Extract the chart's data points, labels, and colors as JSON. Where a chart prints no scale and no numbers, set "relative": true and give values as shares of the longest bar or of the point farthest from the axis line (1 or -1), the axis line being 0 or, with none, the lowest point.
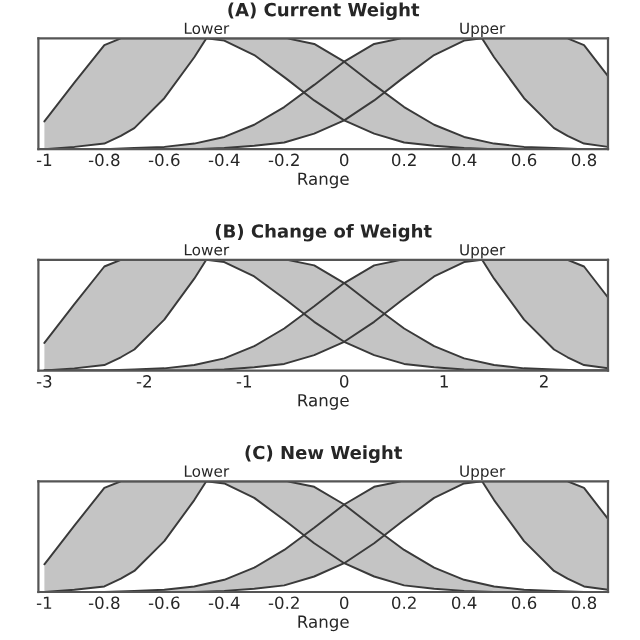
{
  "chart_data": [
    {
      "type": "line",
      "title": "(A) Current Weight",
      "xlabel": "Range",
      "relative": true,
      "tick_labels": "x",
      "xlim": [
        -1.02,
        0.88
      ],
      "xticks": [
        -1,
        -0.8,
        -0.6,
        -0.4,
        -0.2,
        0,
        0.2,
        0.4,
        0.6,
        0.8
      ],
      "annotations": [
        {
          "text": "Lower",
          "x": -0.46,
          "y": 1
        },
        {
          "text": "Upper",
          "x": 0.46,
          "y": 1
        }
      ],
      "series": [
        {
          "color": "#3a3a3a",
          "x": [
            -1,
            -0.9,
            -0.8,
            -0.745,
            -0.7,
            -0.6,
            -0.5,
            -0.46,
            -0.4,
            -0.3,
            -0.2,
            -0.19,
            -0.1,
            0,
            0.1,
            0.2,
            0.3,
            0.4,
            0.5,
            0.6,
            0.7,
            0.8,
            0.88
          ],
          "values": [
            0.25,
            0.6,
            0.94,
            1,
            1,
            1,
            1,
            1,
            1,
            1,
            1,
            1,
            0.95,
            0.79,
            0.58,
            0.38,
            0.22,
            0.11,
            0.05,
            0.02,
            0.01,
            0,
            0
          ]
        },
        {
          "color": "#3a3a3a",
          "x": [
            -1,
            -0.9,
            -0.8,
            -0.745,
            -0.7,
            -0.6,
            -0.5,
            -0.46,
            -0.4,
            -0.3,
            -0.2,
            -0.19,
            -0.1,
            0,
            0.1,
            0.2,
            0.3,
            0.4,
            0.5,
            0.6,
            0.7,
            0.8,
            0.88
          ],
          "values": [
            0,
            0.02,
            0.05,
            0.12,
            0.19,
            0.46,
            0.83,
            1,
            0.98,
            0.85,
            0.65,
            0.63,
            0.44,
            0.26,
            0.14,
            0.06,
            0.03,
            0.01,
            0,
            0,
            0,
            0,
            0
          ]
        },
        {
          "color": "#3a3a3a",
          "x": [
            -1,
            -0.9,
            -0.8,
            -0.7,
            -0.6,
            -0.5,
            -0.4,
            -0.3,
            -0.2,
            -0.1,
            0,
            0.1,
            0.19,
            0.2,
            0.3,
            0.4,
            0.46,
            0.5,
            0.6,
            0.7,
            0.745,
            0.8,
            0.88
          ],
          "values": [
            0,
            0,
            0,
            0.01,
            0.02,
            0.05,
            0.11,
            0.22,
            0.38,
            0.58,
            0.79,
            0.95,
            1,
            1,
            1,
            1,
            1,
            1,
            1,
            1,
            1,
            0.94,
            0.66
          ]
        },
        {
          "color": "#3a3a3a",
          "x": [
            -1,
            -0.9,
            -0.8,
            -0.7,
            -0.6,
            -0.5,
            -0.4,
            -0.3,
            -0.2,
            -0.1,
            0,
            0.1,
            0.19,
            0.2,
            0.3,
            0.4,
            0.46,
            0.5,
            0.6,
            0.7,
            0.745,
            0.8,
            0.88
          ],
          "values": [
            0,
            0,
            0,
            0,
            0,
            0,
            0.01,
            0.03,
            0.06,
            0.14,
            0.26,
            0.44,
            0.63,
            0.65,
            0.85,
            0.98,
            1,
            0.83,
            0.46,
            0.19,
            0.12,
            0.05,
            0.02
          ]
        }
      ]
    },
    {
      "type": "line",
      "title": "(B) Change of Weight",
      "xlabel": "Range",
      "relative": true,
      "tick_labels": "x",
      "xlim": [
        -3.06,
        2.64
      ],
      "xticks": [
        -3,
        -2,
        -1,
        0,
        1,
        2
      ],
      "annotations": [
        {
          "text": "Lower",
          "x": -1.38,
          "y": 1
        },
        {
          "text": "Upper",
          "x": 1.38,
          "y": 1
        }
      ],
      "series": [
        {
          "color": "#3a3a3a",
          "x": [
            -3,
            -2.7,
            -2.4,
            -2.235,
            -2.1,
            -1.8,
            -1.5,
            -1.38,
            -1.2,
            -0.9,
            -0.6,
            -0.57,
            -0.3,
            0,
            0.3,
            0.6,
            0.9,
            1.2,
            1.5,
            1.8,
            2.1,
            2.4,
            2.64
          ],
          "values": [
            0.25,
            0.6,
            0.94,
            1,
            1,
            1,
            1,
            1,
            1,
            1,
            1,
            1,
            0.95,
            0.79,
            0.58,
            0.38,
            0.22,
            0.11,
            0.05,
            0.02,
            0.01,
            0,
            0
          ]
        },
        {
          "color": "#3a3a3a",
          "x": [
            -3,
            -2.7,
            -2.4,
            -2.235,
            -2.1,
            -1.8,
            -1.5,
            -1.38,
            -1.2,
            -0.9,
            -0.6,
            -0.57,
            -0.3,
            0,
            0.3,
            0.6,
            0.9,
            1.2,
            1.5,
            1.8,
            2.1,
            2.4,
            2.64
          ],
          "values": [
            0,
            0.02,
            0.05,
            0.12,
            0.19,
            0.46,
            0.83,
            1,
            0.98,
            0.85,
            0.65,
            0.63,
            0.44,
            0.26,
            0.14,
            0.06,
            0.03,
            0.01,
            0,
            0,
            0,
            0,
            0
          ]
        },
        {
          "color": "#3a3a3a",
          "x": [
            -3,
            -2.7,
            -2.4,
            -2.1,
            -1.8,
            -1.5,
            -1.2,
            -0.9,
            -0.6,
            -0.3,
            0,
            0.3,
            0.57,
            0.6,
            0.9,
            1.2,
            1.38,
            1.5,
            1.8,
            2.1,
            2.235,
            2.4,
            2.64
          ],
          "values": [
            0,
            0,
            0,
            0.01,
            0.02,
            0.05,
            0.11,
            0.22,
            0.38,
            0.58,
            0.79,
            0.95,
            1,
            1,
            1,
            1,
            1,
            1,
            1,
            1,
            1,
            0.94,
            0.66
          ]
        },
        {
          "color": "#3a3a3a",
          "x": [
            -3,
            -2.7,
            -2.4,
            -2.1,
            -1.8,
            -1.5,
            -1.2,
            -0.9,
            -0.6,
            -0.3,
            0,
            0.3,
            0.57,
            0.6,
            0.9,
            1.2,
            1.38,
            1.5,
            1.8,
            2.1,
            2.235,
            2.4,
            2.64
          ],
          "values": [
            0,
            0,
            0,
            0,
            0,
            0,
            0.01,
            0.03,
            0.06,
            0.14,
            0.26,
            0.44,
            0.63,
            0.65,
            0.85,
            0.98,
            1,
            0.83,
            0.46,
            0.19,
            0.12,
            0.05,
            0.02
          ]
        }
      ]
    },
    {
      "type": "line",
      "title": "(C) New Weight",
      "xlabel": "Range",
      "relative": true,
      "tick_labels": "x",
      "xlim": [
        -1.02,
        0.88
      ],
      "xticks": [
        -1,
        -0.8,
        -0.6,
        -0.4,
        -0.2,
        0,
        0.2,
        0.4,
        0.6,
        0.8
      ],
      "annotations": [
        {
          "text": "Lower",
          "x": -0.46,
          "y": 1
        },
        {
          "text": "Upper",
          "x": 0.46,
          "y": 1
        }
      ],
      "series": [
        {
          "color": "#3a3a3a",
          "x": [
            -1,
            -0.9,
            -0.8,
            -0.745,
            -0.7,
            -0.6,
            -0.5,
            -0.46,
            -0.4,
            -0.3,
            -0.2,
            -0.19,
            -0.1,
            0,
            0.1,
            0.2,
            0.3,
            0.4,
            0.5,
            0.6,
            0.7,
            0.8,
            0.88
          ],
          "values": [
            0.25,
            0.6,
            0.94,
            1,
            1,
            1,
            1,
            1,
            1,
            1,
            1,
            1,
            0.95,
            0.79,
            0.58,
            0.38,
            0.22,
            0.11,
            0.05,
            0.02,
            0.01,
            0,
            0
          ]
        },
        {
          "color": "#3a3a3a",
          "x": [
            -1,
            -0.9,
            -0.8,
            -0.745,
            -0.7,
            -0.6,
            -0.5,
            -0.46,
            -0.4,
            -0.3,
            -0.2,
            -0.19,
            -0.1,
            0,
            0.1,
            0.2,
            0.3,
            0.4,
            0.5,
            0.6,
            0.7,
            0.8,
            0.88
          ],
          "values": [
            0,
            0.02,
            0.05,
            0.12,
            0.19,
            0.46,
            0.83,
            1,
            0.98,
            0.85,
            0.65,
            0.63,
            0.44,
            0.26,
            0.14,
            0.06,
            0.03,
            0.01,
            0,
            0,
            0,
            0,
            0
          ]
        },
        {
          "color": "#3a3a3a",
          "x": [
            -1,
            -0.9,
            -0.8,
            -0.7,
            -0.6,
            -0.5,
            -0.4,
            -0.3,
            -0.2,
            -0.1,
            0,
            0.1,
            0.19,
            0.2,
            0.3,
            0.4,
            0.46,
            0.5,
            0.6,
            0.7,
            0.745,
            0.8,
            0.88
          ],
          "values": [
            0,
            0,
            0,
            0.01,
            0.02,
            0.05,
            0.11,
            0.22,
            0.38,
            0.58,
            0.79,
            0.95,
            1,
            1,
            1,
            1,
            1,
            1,
            1,
            1,
            1,
            0.94,
            0.66
          ]
        },
        {
          "color": "#3a3a3a",
          "x": [
            -1,
            -0.9,
            -0.8,
            -0.7,
            -0.6,
            -0.5,
            -0.4,
            -0.3,
            -0.2,
            -0.1,
            0,
            0.1,
            0.19,
            0.2,
            0.3,
            0.4,
            0.46,
            0.5,
            0.6,
            0.7,
            0.745,
            0.8,
            0.88
          ],
          "values": [
            0,
            0,
            0,
            0,
            0,
            0,
            0.01,
            0.03,
            0.06,
            0.14,
            0.26,
            0.44,
            0.63,
            0.65,
            0.85,
            0.98,
            1,
            0.83,
            0.46,
            0.19,
            0.12,
            0.05,
            0.02
          ]
        }
      ]
    }
  ]
}
